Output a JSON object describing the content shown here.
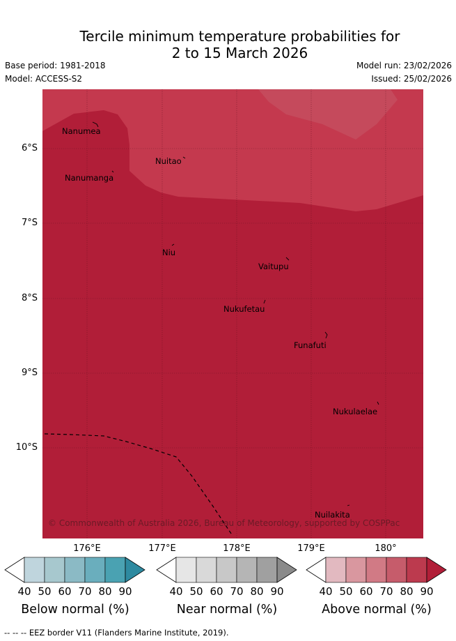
{
  "title": {
    "line1": "Tercile minimum temperature probabilities for",
    "line2": "2 to 15 March 2026"
  },
  "meta": {
    "base_period": "Base period: 1981-2018",
    "model": "Model: ACCESS-S2",
    "model_run": "Model run: 23/02/2026",
    "issued": "Issued: 25/02/2026"
  },
  "map": {
    "lat_labels": [
      "6°S",
      "7°S",
      "8°S",
      "9°S",
      "10°S"
    ],
    "lon_labels": [
      "176°E",
      "177°E",
      "178°E",
      "179°E",
      "180°"
    ],
    "islands": [
      {
        "name": "Nanumea"
      },
      {
        "name": "Nuitao"
      },
      {
        "name": "Nanumanga"
      },
      {
        "name": "Niu"
      },
      {
        "name": "Vaitupu"
      },
      {
        "name": "Nukufetau"
      },
      {
        "name": "Funafuti"
      },
      {
        "name": "Nukulaelae"
      },
      {
        "name": "Nuilakita"
      }
    ],
    "copyright": "© Commonwealth of Australia 2026, Bureau of Meteorology, supported by COSPPac",
    "colors": {
      "above_70": "#c4394e",
      "above_80": "#b11e38",
      "above_60": "#c54a5c"
    }
  },
  "colorbars": [
    {
      "title": "Below normal (%)",
      "ticks": [
        "40",
        "50",
        "60",
        "70",
        "80",
        "90"
      ],
      "colors": [
        "#bfd5dd",
        "#a7c8ce",
        "#8bbac5",
        "#6aaebd",
        "#4aa2b2",
        "#2e8aa0"
      ]
    },
    {
      "title": "Near normal (%)",
      "ticks": [
        "40",
        "50",
        "60",
        "70",
        "80",
        "90"
      ],
      "colors": [
        "#e6e6e6",
        "#d9d9d9",
        "#c8c8c8",
        "#b5b5b5",
        "#a0a0a0",
        "#8a8a8a"
      ]
    },
    {
      "title": "Above normal (%)",
      "ticks": [
        "40",
        "50",
        "60",
        "70",
        "80",
        "90"
      ],
      "colors": [
        "#e2b9c0",
        "#d9979f",
        "#d17a85",
        "#c65c6b",
        "#bc3a4e",
        "#b11e38"
      ]
    }
  ],
  "footer": "--  --  -- EEZ border V11 (Flanders Marine Institute, 2019)."
}
